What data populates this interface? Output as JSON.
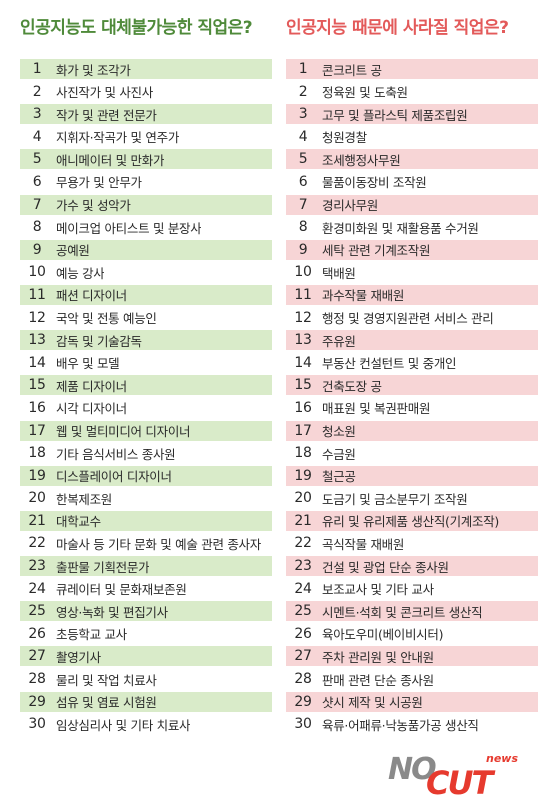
{
  "left": {
    "title": "인공지능도 대체불가능한 직업은?",
    "items": [
      {
        "n": "1",
        "t": "화가 및 조각가"
      },
      {
        "n": "2",
        "t": "사진작가 및 사진사"
      },
      {
        "n": "3",
        "t": "작가 및 관련 전문가"
      },
      {
        "n": "4",
        "t": "지휘자·작곡가 및 연주가"
      },
      {
        "n": "5",
        "t": "애니메이터 및 만화가"
      },
      {
        "n": "6",
        "t": "무용가 및 안무가"
      },
      {
        "n": "7",
        "t": "가수 및 성악가"
      },
      {
        "n": "8",
        "t": "메이크업 아티스트 및 분장사"
      },
      {
        "n": "9",
        "t": "공예원"
      },
      {
        "n": "10",
        "t": "예능 강사"
      },
      {
        "n": "11",
        "t": "패션 디자이너"
      },
      {
        "n": "12",
        "t": "국악 및 전통 예능인"
      },
      {
        "n": "13",
        "t": "감독 및 기술감독"
      },
      {
        "n": "14",
        "t": "배우 및 모델"
      },
      {
        "n": "15",
        "t": "제품 디자이너"
      },
      {
        "n": "16",
        "t": "시각 디자이너"
      },
      {
        "n": "17",
        "t": "웹 및 멀티미디어 디자이너"
      },
      {
        "n": "18",
        "t": "기타 음식서비스 종사원"
      },
      {
        "n": "19",
        "t": "디스플레이어 디자이너"
      },
      {
        "n": "20",
        "t": "한복제조원"
      },
      {
        "n": "21",
        "t": "대학교수"
      },
      {
        "n": "22",
        "t": "마술사 등 기타 문화 및 예술 관련 종사자"
      },
      {
        "n": "23",
        "t": "출판물 기획전문가"
      },
      {
        "n": "24",
        "t": "큐레이터 및 문화재보존원"
      },
      {
        "n": "25",
        "t": "영상·녹화 및 편집기사"
      },
      {
        "n": "26",
        "t": "초등학교 교사"
      },
      {
        "n": "27",
        "t": "촬영기사"
      },
      {
        "n": "28",
        "t": "물리 및 작업 치료사"
      },
      {
        "n": "29",
        "t": "섬유 및 염료 시험원"
      },
      {
        "n": "30",
        "t": "임상심리사 및 기타 치료사"
      }
    ]
  },
  "right": {
    "title": "인공지능 때문에 사라질 직업은?",
    "items": [
      {
        "n": "1",
        "t": "콘크리트 공"
      },
      {
        "n": "2",
        "t": "정육원 및 도축원"
      },
      {
        "n": "3",
        "t": "고무 및 플라스틱 제품조립원"
      },
      {
        "n": "4",
        "t": "청원경찰"
      },
      {
        "n": "5",
        "t": "조세행정사무원"
      },
      {
        "n": "6",
        "t": "물품이동장비 조작원"
      },
      {
        "n": "7",
        "t": "경리사무원"
      },
      {
        "n": "8",
        "t": "환경미화원 및 재활용품 수거원"
      },
      {
        "n": "9",
        "t": "세탁 관련 기계조작원"
      },
      {
        "n": "10",
        "t": "택배원"
      },
      {
        "n": "11",
        "t": "과수작물 재배원"
      },
      {
        "n": "12",
        "t": "행정 및 경영지원관련 서비스 관리"
      },
      {
        "n": "13",
        "t": "주유원"
      },
      {
        "n": "14",
        "t": "부동산 컨설턴트 및 중개인"
      },
      {
        "n": "15",
        "t": "건축도장 공"
      },
      {
        "n": "16",
        "t": "매표원 및 복권판매원"
      },
      {
        "n": "17",
        "t": "청소원"
      },
      {
        "n": "18",
        "t": "수금원"
      },
      {
        "n": "19",
        "t": "철근공"
      },
      {
        "n": "20",
        "t": "도금기 및 금소분무기 조작원"
      },
      {
        "n": "21",
        "t": "유리 및 유리제품 생산직(기계조작)"
      },
      {
        "n": "22",
        "t": "곡식작물 재배원"
      },
      {
        "n": "23",
        "t": "건설 및 광업 단순 종사원"
      },
      {
        "n": "24",
        "t": "보조교사 및 기타 교사"
      },
      {
        "n": "25",
        "t": "시멘트·석회 및 콘크리트 생산직"
      },
      {
        "n": "26",
        "t": "육아도우미(베이비시터)"
      },
      {
        "n": "27",
        "t": "주차 관리원 및 안내원"
      },
      {
        "n": "28",
        "t": "판매 관련 단순 종사원"
      },
      {
        "n": "29",
        "t": "샷시 제작 및 시공원"
      },
      {
        "n": "30",
        "t": "육류·어패류·낙농품가공 생산직"
      }
    ]
  },
  "logo": {
    "no": "NO",
    "cut": "CUT",
    "news": "news"
  },
  "colors": {
    "green_title": "#4f8a3a",
    "pink_title": "#e35a5a",
    "green_band": "#d9ebc9",
    "pink_band": "#f7d5d6"
  }
}
